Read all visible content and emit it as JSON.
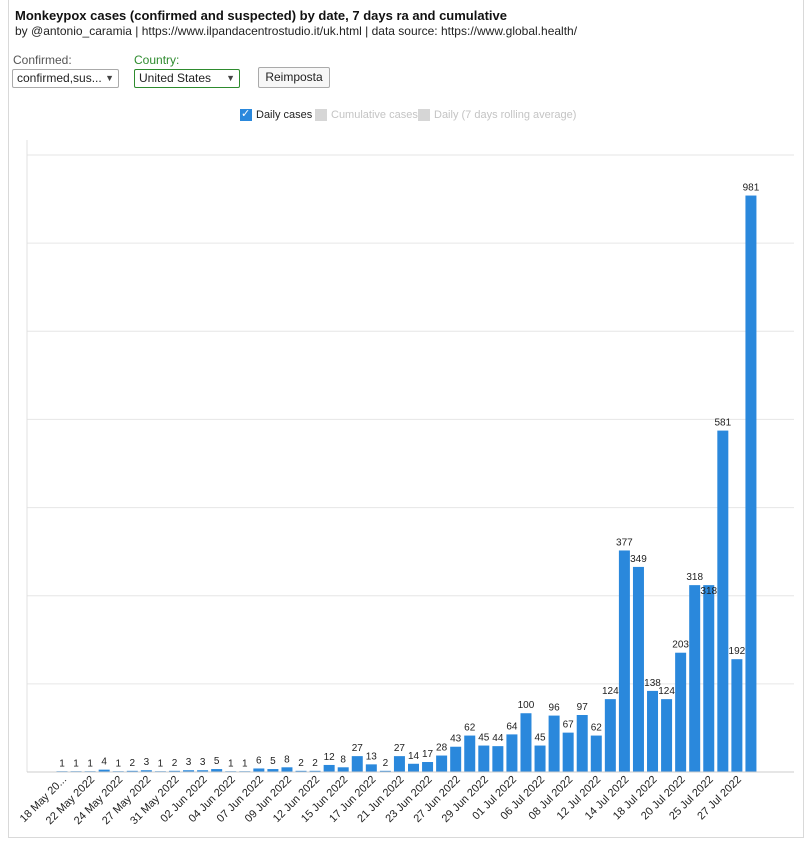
{
  "header": {
    "title": "Monkeypox cases (confirmed and suspected) by date, 7 days ra and cumulative",
    "subtitle": "by @antonio_caramia | https://www.ilpandacentrostudio.it/uk.html | data source: https://www.global.health/"
  },
  "filters": {
    "confirmed_label": "Confirmed:",
    "confirmed_value": "confirmed,sus...",
    "country_label": "Country:",
    "country_value": "United States",
    "reset_label": "Reimposta"
  },
  "legend": {
    "daily": "Daily cases",
    "cumulative": "Cumulative cases",
    "rolling": "Daily (7 days rolling average)"
  },
  "colors": {
    "bar": "#2a88dc",
    "grid": "#e6e6e6",
    "accent_green": "#2e8b2e"
  },
  "chart_data": {
    "type": "bar",
    "title": "",
    "xlabel": "",
    "ylabel": "",
    "ylim": [
      0,
      1050
    ],
    "grid": true,
    "categories": [
      "18 May 2022",
      "",
      "22 May 2022",
      "",
      "24 May 2022",
      "",
      "27 May 2022",
      "",
      "31 May 2022",
      "",
      "02 Jun 2022",
      "",
      "04 Jun 2022",
      "",
      "07 Jun 2022",
      "",
      "09 Jun 2022",
      "",
      "12 Jun 2022",
      "",
      "15 Jun 2022",
      "",
      "17 Jun 2022",
      "",
      "21 Jun 2022",
      "",
      "23 Jun 2022",
      "",
      "27 Jun 2022",
      "",
      "29 Jun 2022",
      "",
      "01 Jul 2022",
      "",
      "06 Jul 2022",
      "",
      "08 Jul 2022",
      "",
      "12 Jul 2022",
      "",
      "14 Jul 2022",
      "",
      "18 Jul 2022",
      "",
      "20 Jul 2022",
      "",
      "25 Jul 2022",
      "",
      "27 Jul 2022",
      ""
    ],
    "tick_labels": [
      "18 May 20...",
      "22 May 2022",
      "24 May 2022",
      "27 May 2022",
      "31 May 2022",
      "02 Jun 2022",
      "04 Jun 2022",
      "07 Jun 2022",
      "09 Jun 2022",
      "12 Jun 2022",
      "15 Jun 2022",
      "17 Jun 2022",
      "21 Jun 2022",
      "23 Jun 2022",
      "27 Jun 2022",
      "29 Jun 2022",
      "01 Jul 2022",
      "06 Jul 2022",
      "08 Jul 2022",
      "12 Jul 2022",
      "14 Jul 2022",
      "18 Jul 2022",
      "20 Jul 2022",
      "25 Jul 2022",
      "27 Jul 2022"
    ],
    "series": [
      {
        "name": "Daily cases",
        "values": [
          1,
          1,
          1,
          4,
          1,
          2,
          3,
          1,
          2,
          3,
          3,
          5,
          1,
          1,
          6,
          5,
          8,
          2,
          2,
          12,
          8,
          27,
          13,
          2,
          27,
          14,
          17,
          28,
          43,
          62,
          45,
          44,
          64,
          100,
          45,
          96,
          67,
          97,
          62,
          124,
          377,
          349,
          138,
          124,
          203,
          318,
          318,
          581,
          192,
          981
        ]
      }
    ]
  }
}
